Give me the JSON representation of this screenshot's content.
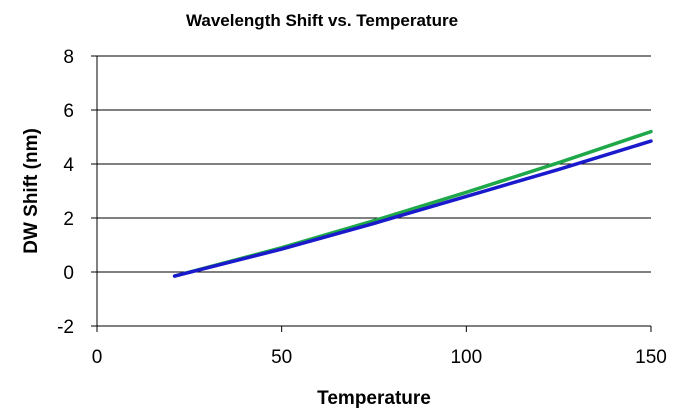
{
  "chart_data": {
    "type": "line",
    "title": "Wavelength Shift vs. Temperature",
    "xlabel": "Temperature",
    "ylabel": "DW Shift  (nm)",
    "xlim": [
      0,
      150
    ],
    "ylim": [
      -2,
      8
    ],
    "x_ticks": [
      0,
      50,
      100,
      150
    ],
    "y_ticks": [
      -2,
      0,
      2,
      4,
      6,
      8
    ],
    "grid": "horizontal major gridlines",
    "legend": "none",
    "series": [
      {
        "color": "#1fa84a",
        "x": [
          21,
          50,
          75,
          100,
          125,
          150
        ],
        "y": [
          -0.15,
          0.9,
          1.9,
          2.95,
          4.05,
          5.2
        ]
      },
      {
        "color": "#1a1acc",
        "x": [
          21,
          50,
          75,
          100,
          125,
          150
        ],
        "y": [
          -0.15,
          0.85,
          1.8,
          2.8,
          3.8,
          4.85
        ]
      }
    ]
  }
}
